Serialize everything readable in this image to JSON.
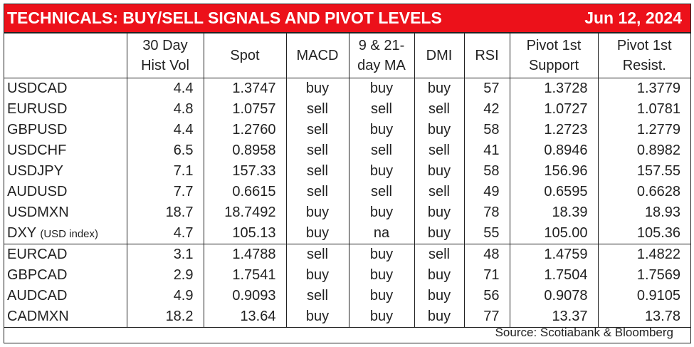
{
  "title": "TECHNICALS: BUY/SELL SIGNALS AND PIVOT LEVELS",
  "date": "Jun 12, 2024",
  "headers": {
    "hist_vol": [
      "30 Day",
      "Hist Vol"
    ],
    "spot": "Spot",
    "macd": "MACD",
    "ma": [
      "9 & 21-",
      "day MA"
    ],
    "dmi": "DMI",
    "rsi": "RSI",
    "support": [
      "Pivot 1st",
      "Support"
    ],
    "resist": [
      "Pivot 1st",
      "Resist."
    ]
  },
  "rows": [
    {
      "pair": "USDCAD",
      "note": "",
      "hist_vol": "4.4",
      "spot": "1.3747",
      "macd": "buy",
      "ma": "buy",
      "dmi": "buy",
      "rsi": "57",
      "support": "1.3728",
      "resist": "1.3779"
    },
    {
      "pair": "EURUSD",
      "note": "",
      "hist_vol": "4.8",
      "spot": "1.0757",
      "macd": "sell",
      "ma": "sell",
      "dmi": "sell",
      "rsi": "42",
      "support": "1.0727",
      "resist": "1.0781"
    },
    {
      "pair": "GBPUSD",
      "note": "",
      "hist_vol": "4.4",
      "spot": "1.2760",
      "macd": "sell",
      "ma": "buy",
      "dmi": "buy",
      "rsi": "58",
      "support": "1.2723",
      "resist": "1.2779"
    },
    {
      "pair": "USDCHF",
      "note": "",
      "hist_vol": "6.5",
      "spot": "0.8958",
      "macd": "sell",
      "ma": "sell",
      "dmi": "sell",
      "rsi": "41",
      "support": "0.8946",
      "resist": "0.8982"
    },
    {
      "pair": "USDJPY",
      "note": "",
      "hist_vol": "7.1",
      "spot": "157.33",
      "macd": "sell",
      "ma": "buy",
      "dmi": "buy",
      "rsi": "58",
      "support": "156.96",
      "resist": "157.55"
    },
    {
      "pair": "AUDUSD",
      "note": "",
      "hist_vol": "7.7",
      "spot": "0.6615",
      "macd": "sell",
      "ma": "sell",
      "dmi": "sell",
      "rsi": "49",
      "support": "0.6595",
      "resist": "0.6628"
    },
    {
      "pair": "USDMXN",
      "note": "",
      "hist_vol": "18.7",
      "spot": "18.7492",
      "macd": "buy",
      "ma": "buy",
      "dmi": "buy",
      "rsi": "78",
      "support": "18.39",
      "resist": "18.93"
    },
    {
      "pair": "DXY",
      "note": "(USD index)",
      "hist_vol": "4.7",
      "spot": "105.13",
      "macd": "buy",
      "ma": "na",
      "dmi": "buy",
      "rsi": "55",
      "support": "105.00",
      "resist": "105.36"
    },
    {
      "pair": "EURCAD",
      "note": "",
      "hist_vol": "3.1",
      "spot": "1.4788",
      "macd": "sell",
      "ma": "buy",
      "dmi": "sell",
      "rsi": "48",
      "support": "1.4759",
      "resist": "1.4822"
    },
    {
      "pair": "GBPCAD",
      "note": "",
      "hist_vol": "2.9",
      "spot": "1.7541",
      "macd": "buy",
      "ma": "buy",
      "dmi": "buy",
      "rsi": "71",
      "support": "1.7504",
      "resist": "1.7569"
    },
    {
      "pair": "AUDCAD",
      "note": "",
      "hist_vol": "4.9",
      "spot": "0.9093",
      "macd": "sell",
      "ma": "buy",
      "dmi": "buy",
      "rsi": "56",
      "support": "0.9078",
      "resist": "0.9105"
    },
    {
      "pair": "CADMXN",
      "note": "",
      "hist_vol": "18.2",
      "spot": "13.64",
      "macd": "buy",
      "ma": "buy",
      "dmi": "buy",
      "rsi": "77",
      "support": "13.37",
      "resist": "13.78"
    }
  ],
  "source": "Source: Scotiabank & Bloomberg",
  "colors": {
    "title_bg": "#ec111a",
    "title_text": "#ffffff"
  }
}
